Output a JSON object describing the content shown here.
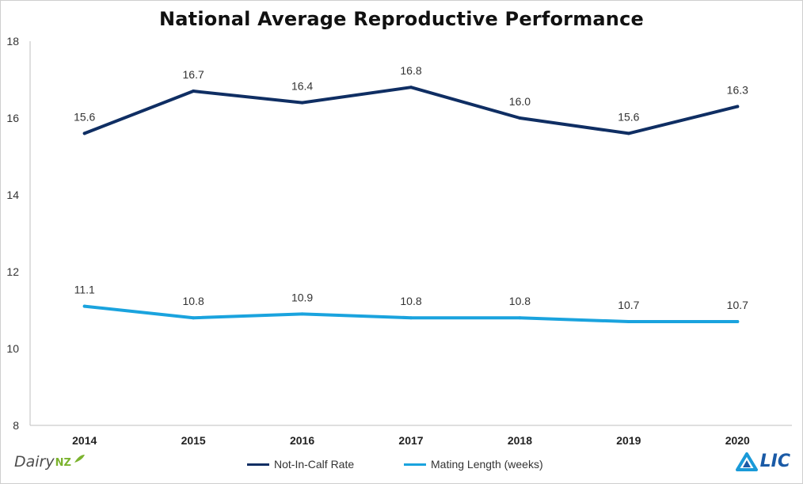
{
  "chart_data": {
    "type": "line",
    "title": "National Average Reproductive Performance",
    "categories": [
      "2014",
      "2015",
      "2016",
      "2017",
      "2018",
      "2019",
      "2020"
    ],
    "ylim": [
      8,
      18
    ],
    "yticks": [
      8,
      10,
      12,
      14,
      16,
      18
    ],
    "xlabel": "",
    "ylabel": "",
    "grid": false,
    "legend_position": "bottom-center",
    "series": [
      {
        "name": "Not-In-Calf Rate",
        "color": "#0f2e63",
        "values": [
          15.6,
          16.7,
          16.4,
          16.8,
          16.0,
          15.6,
          16.3
        ],
        "labels": [
          "15.6",
          "16.7",
          "16.4",
          "16.8",
          "16.0",
          "15.6",
          "16.3"
        ]
      },
      {
        "name": "Mating Length (weeks)",
        "color": "#1aa3de",
        "values": [
          11.1,
          10.8,
          10.9,
          10.8,
          10.8,
          10.7,
          10.7
        ],
        "labels": [
          "11.1",
          "10.8",
          "10.9",
          "10.8",
          "10.8",
          "10.7",
          "10.7"
        ]
      }
    ]
  },
  "logos": {
    "left_main": "Dairy",
    "left_sub": "NZ",
    "right": "LIC"
  }
}
